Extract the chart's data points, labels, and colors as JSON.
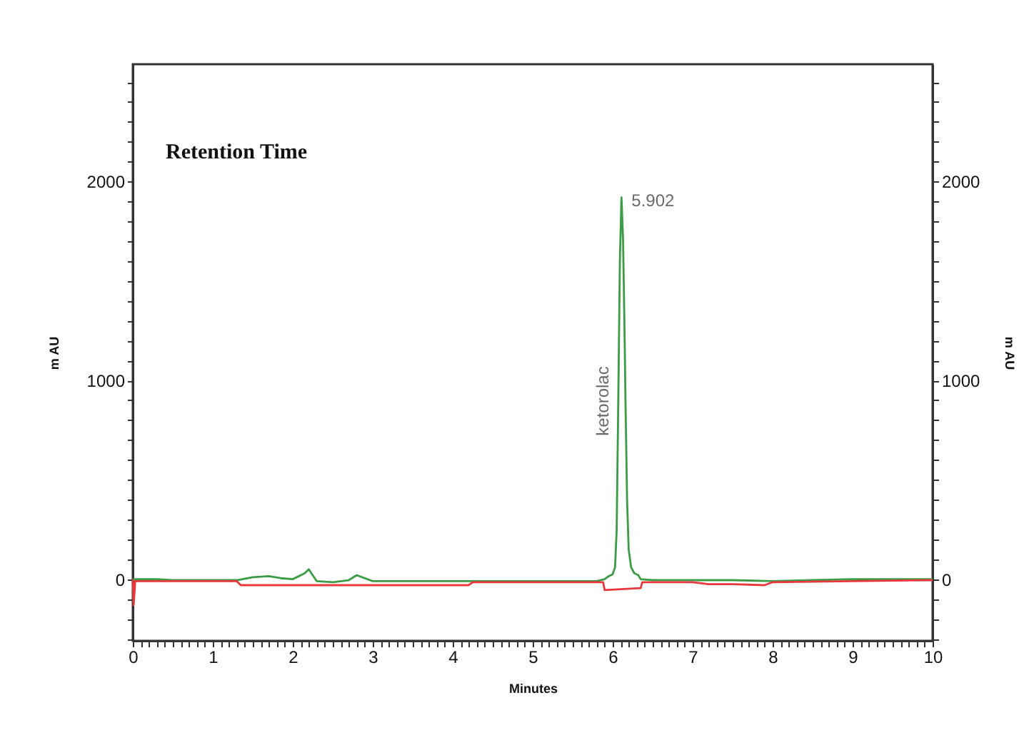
{
  "chart_data": {
    "type": "line",
    "title": "Retention Time",
    "xlabel": "Minutes",
    "ylabel": "m AU",
    "y2label": "m AU",
    "xlim": [
      0,
      10
    ],
    "ylim": [
      -310,
      2590
    ],
    "y2lim": [
      -310,
      2590
    ],
    "xticks": [
      0,
      {
        "value": 0.1,
        "label": null
      },
      {
        "value": 0.2,
        "label": null
      },
      {
        "value": 0.3,
        "label": null
      },
      {
        "value": 0.4,
        "label": null
      },
      {
        "value": 0.5,
        "label": null
      },
      {
        "value": 0.6,
        "label": null
      },
      {
        "value": 0.7,
        "label": null
      },
      {
        "value": 0.8,
        "label": null
      },
      {
        "value": 0.9,
        "label": null
      },
      1,
      {
        "value": 1.1,
        "label": null
      },
      {
        "value": 1.2,
        "label": null
      },
      {
        "value": 1.3,
        "label": null
      },
      {
        "value": 1.4,
        "label": null
      },
      {
        "value": 1.5,
        "label": null
      },
      {
        "value": 1.6,
        "label": null
      },
      {
        "value": 1.7,
        "label": null
      },
      {
        "value": 1.8,
        "label": null
      },
      {
        "value": 1.9,
        "label": null
      },
      2,
      {
        "value": 2.1,
        "label": null
      },
      {
        "value": 2.2,
        "label": null
      },
      {
        "value": 2.3,
        "label": null
      },
      {
        "value": 2.4,
        "label": null
      },
      {
        "value": 2.5,
        "label": null
      },
      {
        "value": 2.6,
        "label": null
      },
      {
        "value": 2.7,
        "label": null
      },
      {
        "value": 2.8,
        "label": null
      },
      {
        "value": 2.9,
        "label": null
      },
      3,
      {
        "value": 3.1,
        "label": null
      },
      {
        "value": 3.2,
        "label": null
      },
      {
        "value": 3.3,
        "label": null
      },
      {
        "value": 3.4,
        "label": null
      },
      {
        "value": 3.5,
        "label": null
      },
      {
        "value": 3.6,
        "label": null
      },
      {
        "value": 3.7,
        "label": null
      },
      {
        "value": 3.8,
        "label": null
      },
      {
        "value": 3.9,
        "label": null
      },
      4,
      {
        "value": 4.1,
        "label": null
      },
      {
        "value": 4.2,
        "label": null
      },
      {
        "value": 4.3,
        "label": null
      },
      {
        "value": 4.4,
        "label": null
      },
      {
        "value": 4.5,
        "label": null
      },
      {
        "value": 4.6,
        "label": null
      },
      {
        "value": 4.7,
        "label": null
      },
      {
        "value": 4.8,
        "label": null
      },
      {
        "value": 4.9,
        "label": null
      },
      5,
      {
        "value": 5.1,
        "label": null
      },
      {
        "value": 5.2,
        "label": null
      },
      {
        "value": 5.3,
        "label": null
      },
      {
        "value": 5.4,
        "label": null
      },
      {
        "value": 5.5,
        "label": null
      },
      {
        "value": 5.6,
        "label": null
      },
      {
        "value": 5.7,
        "label": null
      },
      {
        "value": 5.8,
        "label": null
      },
      {
        "value": 5.9,
        "label": null
      },
      6,
      {
        "value": 6.1,
        "label": null
      },
      {
        "value": 6.2,
        "label": null
      },
      {
        "value": 6.3,
        "label": null
      },
      {
        "value": 6.4,
        "label": null
      },
      {
        "value": 6.5,
        "label": null
      },
      {
        "value": 6.6,
        "label": null
      },
      {
        "value": 6.7,
        "label": null
      },
      {
        "value": 6.8,
        "label": null
      },
      {
        "value": 6.9,
        "label": null
      },
      7,
      {
        "value": 7.1,
        "label": null
      },
      {
        "value": 7.2,
        "label": null
      },
      {
        "value": 7.3,
        "label": null
      },
      {
        "value": 7.4,
        "label": null
      },
      {
        "value": 7.5,
        "label": null
      },
      {
        "value": 7.6,
        "label": null
      },
      {
        "value": 7.7,
        "label": null
      },
      {
        "value": 7.8,
        "label": null
      },
      {
        "value": 7.9,
        "label": null
      },
      8,
      {
        "value": 8.1,
        "label": null
      },
      {
        "value": 8.2,
        "label": null
      },
      {
        "value": 8.3,
        "label": null
      },
      {
        "value": 8.4,
        "label": null
      },
      {
        "value": 8.5,
        "label": null
      },
      {
        "value": 8.6,
        "label": null
      },
      {
        "value": 8.7,
        "label": null
      },
      {
        "value": 8.8,
        "label": null
      },
      {
        "value": 8.9,
        "label": null
      },
      9,
      {
        "value": 9.1,
        "label": null
      },
      {
        "value": 9.2,
        "label": null
      },
      {
        "value": 9.3,
        "label": null
      },
      {
        "value": 9.4,
        "label": null
      },
      {
        "value": 9.5,
        "label": null
      },
      {
        "value": 9.6,
        "label": null
      },
      {
        "value": 9.7,
        "label": null
      },
      {
        "value": 9.8,
        "label": null
      },
      {
        "value": 9.9,
        "label": null
      },
      10
    ],
    "yticks": [
      {
        "value": -300,
        "label": null
      },
      {
        "value": -200,
        "label": null
      },
      {
        "value": -100,
        "label": null
      },
      0,
      {
        "value": 100,
        "label": null
      },
      {
        "value": 200,
        "label": null
      },
      {
        "value": 300,
        "label": null
      },
      {
        "value": 400,
        "label": null
      },
      {
        "value": 500,
        "label": null
      },
      {
        "value": 600,
        "label": null
      },
      {
        "value": 700,
        "label": null
      },
      {
        "value": 800,
        "label": null
      },
      {
        "value": 900,
        "label": null
      },
      1000,
      {
        "value": 1100,
        "label": null
      },
      {
        "value": 1200,
        "label": null
      },
      {
        "value": 1300,
        "label": null
      },
      {
        "value": 1400,
        "label": null
      },
      {
        "value": 1500,
        "label": null
      },
      {
        "value": 1600,
        "label": null
      },
      {
        "value": 1700,
        "label": null
      },
      {
        "value": 1800,
        "label": null
      },
      {
        "value": 1900,
        "label": null
      },
      2000,
      {
        "value": 2100,
        "label": null
      },
      {
        "value": 2200,
        "label": null
      },
      {
        "value": 2300,
        "label": null
      },
      {
        "value": 2400,
        "label": null
      },
      {
        "value": 2500,
        "label": null
      }
    ],
    "y2ticks": [
      {
        "value": -300,
        "label": null
      },
      {
        "value": -200,
        "label": null
      },
      {
        "value": -100,
        "label": null
      },
      0,
      {
        "value": 100,
        "label": null
      },
      {
        "value": 200,
        "label": null
      },
      {
        "value": 300,
        "label": null
      },
      {
        "value": 400,
        "label": null
      },
      {
        "value": 500,
        "label": null
      },
      {
        "value": 600,
        "label": null
      },
      {
        "value": 700,
        "label": null
      },
      {
        "value": 800,
        "label": null
      },
      {
        "value": 900,
        "label": null
      },
      1000,
      {
        "value": 1100,
        "label": null
      },
      {
        "value": 1200,
        "label": null
      },
      {
        "value": 1300,
        "label": null
      },
      {
        "value": 1400,
        "label": null
      },
      {
        "value": 1500,
        "label": null
      },
      {
        "value": 1600,
        "label": null
      },
      {
        "value": 1700,
        "label": null
      },
      {
        "value": 1800,
        "label": null
      },
      {
        "value": 1900,
        "label": null
      },
      2000,
      {
        "value": 2100,
        "label": null
      },
      {
        "value": 2200,
        "label": null
      },
      {
        "value": 2300,
        "label": null
      },
      {
        "value": 2400,
        "label": null
      },
      {
        "value": 2500,
        "label": null
      }
    ],
    "series": [
      {
        "color": "#3c9c46",
        "x": [
          0,
          0.3,
          0.5,
          0.8,
          1.0,
          1.3,
          1.5,
          1.7,
          1.85,
          2.0,
          2.15,
          2.2,
          2.3,
          2.5,
          2.7,
          2.8,
          3.0,
          3.3,
          3.6,
          4.0,
          4.2,
          4.5,
          5.0,
          5.5,
          5.8,
          5.9,
          5.95,
          6.0,
          6.03,
          6.05,
          6.07,
          6.09,
          6.11,
          6.13,
          6.15,
          6.16,
          6.18,
          6.2,
          6.23,
          6.27,
          6.32,
          6.35,
          6.5,
          7.0,
          7.5,
          8.0,
          8.5,
          9.0,
          9.5,
          10.0
        ],
        "values": [
          0,
          0,
          -5,
          -5,
          -5,
          -5,
          10,
          15,
          5,
          0,
          30,
          50,
          -10,
          -15,
          -5,
          20,
          -10,
          -10,
          -10,
          -10,
          -10,
          -10,
          -10,
          -10,
          -10,
          0,
          15,
          25,
          60,
          250,
          900,
          1600,
          1920,
          1700,
          1200,
          900,
          400,
          150,
          60,
          30,
          20,
          0,
          -5,
          -5,
          -5,
          -10,
          -5,
          0,
          0,
          0
        ]
      },
      {
        "color": "#e8383d",
        "axis": "y2",
        "x": [
          0,
          0.01,
          0.03,
          0.5,
          1.3,
          1.35,
          2.0,
          3.0,
          4.2,
          4.25,
          5.0,
          5.88,
          5.9,
          6.35,
          6.37,
          7.0,
          7.2,
          7.5,
          7.9,
          8.0,
          9.0,
          10.0
        ],
        "values": [
          0,
          -130,
          -10,
          -10,
          -10,
          -30,
          -30,
          -30,
          -30,
          -15,
          -15,
          -15,
          -55,
          -45,
          -15,
          -15,
          -25,
          -25,
          -30,
          -15,
          -10,
          -5
        ]
      }
    ],
    "annotations": [
      {
        "text": "5.902",
        "x": 6.11,
        "y": 1920
      },
      "ketorolac"
    ]
  }
}
